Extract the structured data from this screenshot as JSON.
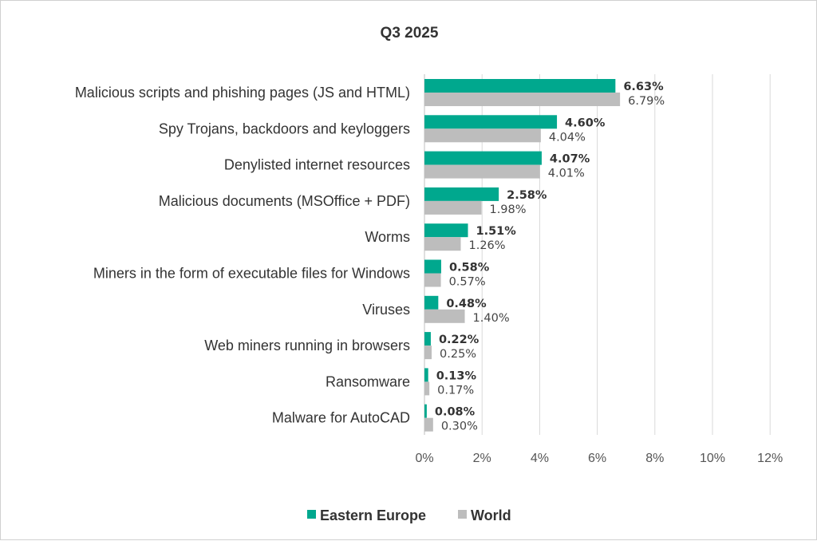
{
  "chart_data": {
    "type": "bar",
    "orientation": "horizontal",
    "title": "Q3 2025",
    "categories": [
      "Malicious scripts and phishing pages (JS and HTML)",
      "Spy Trojans, backdoors and keyloggers",
      "Denylisted internet resources",
      "Malicious documents (MSOffice + PDF)",
      "Worms",
      "Miners in the form of executable files for Windows",
      "Viruses",
      "Web miners running in browsers",
      "Ransomware",
      "Malware for AutoCAD"
    ],
    "series": [
      {
        "name": "Eastern Europe",
        "color": "#00A88E",
        "values": [
          6.63,
          4.6,
          4.07,
          2.58,
          1.51,
          0.58,
          0.48,
          0.22,
          0.13,
          0.08
        ],
        "labels": [
          "6.63%",
          "4.60%",
          "4.07%",
          "2.58%",
          "1.51%",
          "0.58%",
          "0.48%",
          "0.22%",
          "0.13%",
          "0.08%"
        ]
      },
      {
        "name": "World",
        "color": "#BDBDBD",
        "values": [
          6.79,
          4.04,
          4.01,
          1.98,
          1.26,
          0.57,
          1.4,
          0.25,
          0.17,
          0.3
        ],
        "labels": [
          "6.79%",
          "4.04%",
          "4.01%",
          "1.98%",
          "1.26%",
          "0.57%",
          "1.40%",
          "0.25%",
          "0.17%",
          "0.30%"
        ]
      }
    ],
    "xlim": [
      0,
      12
    ],
    "xticks": [
      "0%",
      "2%",
      "4%",
      "6%",
      "8%",
      "10%",
      "12%"
    ],
    "grid": true,
    "legend_position": "bottom-center"
  }
}
